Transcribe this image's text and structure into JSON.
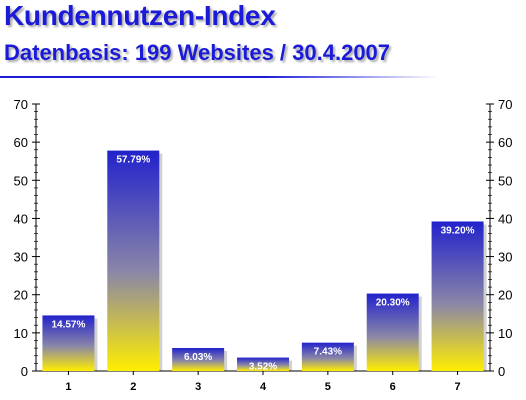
{
  "header": {
    "title": "Kundennutzen-Index",
    "subtitle": "Datenbasis: 199 Websites / 30.4.2007"
  },
  "colors": {
    "title": "#1a1ad8",
    "bar_top": "#2222cc",
    "bar_bottom": "#ffee00"
  },
  "chart_data": {
    "type": "bar",
    "categories": [
      "1",
      "2",
      "3",
      "4",
      "5",
      "6",
      "7"
    ],
    "values": [
      14.57,
      57.79,
      6.03,
      3.52,
      7.43,
      20.3,
      39.2
    ],
    "data_labels": [
      "14.57%",
      "57.79%",
      "6.03%",
      "3.52%",
      "7.43%",
      "20.30%",
      "39.20%"
    ],
    "title": "Kundennutzen-Index",
    "subtitle": "Datenbasis: 199 Websites / 30.4.2007",
    "xlabel": "",
    "ylabel": "",
    "ylim": [
      0,
      70
    ],
    "yticks": [
      "0",
      "10",
      "20",
      "30",
      "40",
      "50",
      "60",
      "70"
    ],
    "secondary_y_axis": true,
    "grid": false,
    "legend": "none"
  }
}
